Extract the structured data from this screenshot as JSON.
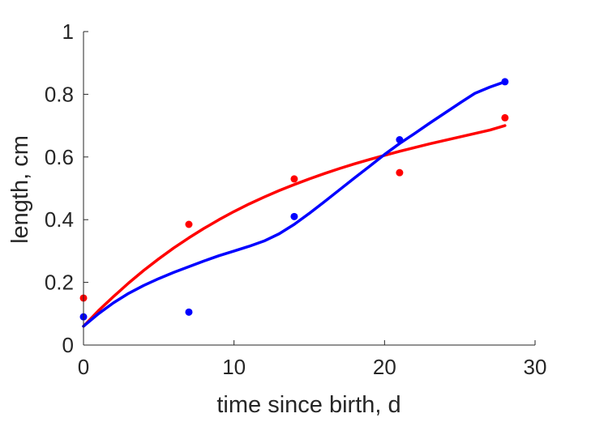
{
  "chart_data": {
    "type": "scatter",
    "title": "",
    "xlabel": "time since birth, d",
    "ylabel": "length, cm",
    "xlim": [
      0,
      30
    ],
    "ylim": [
      0,
      1
    ],
    "xticks": [
      "0",
      "10",
      "20",
      "30"
    ],
    "yticks": [
      "0",
      "0.2",
      "0.4",
      "0.6",
      "0.8",
      "1"
    ],
    "grid": false,
    "legend": "none",
    "series": [
      {
        "kind": "points",
        "color": "#ff0000",
        "x": [
          0,
          7,
          14,
          21,
          28
        ],
        "y": [
          0.15,
          0.385,
          0.53,
          0.55,
          0.725
        ]
      },
      {
        "kind": "points",
        "color": "#0000ff",
        "x": [
          0,
          7,
          14,
          21,
          28
        ],
        "y": [
          0.09,
          0.105,
          0.41,
          0.655,
          0.84
        ]
      },
      {
        "kind": "line",
        "color": "#ff0000",
        "x": [
          0,
          1,
          2,
          3,
          4,
          5,
          6,
          7,
          8,
          9,
          10,
          11,
          12,
          13,
          14,
          15,
          16,
          17,
          18,
          19,
          20,
          21,
          22,
          23,
          24,
          25,
          26,
          27,
          28
        ],
        "y": [
          0.06,
          0.11,
          0.155,
          0.198,
          0.238,
          0.275,
          0.31,
          0.342,
          0.372,
          0.4,
          0.426,
          0.45,
          0.472,
          0.493,
          0.512,
          0.53,
          0.547,
          0.563,
          0.578,
          0.592,
          0.605,
          0.618,
          0.63,
          0.642,
          0.653,
          0.664,
          0.675,
          0.686,
          0.7
        ]
      },
      {
        "kind": "line",
        "color": "#0000ff",
        "x": [
          0,
          1,
          2,
          3,
          4,
          5,
          6,
          7,
          8,
          9,
          10,
          11,
          12,
          13,
          14,
          15,
          16,
          17,
          18,
          19,
          20,
          21,
          22,
          23,
          24,
          25,
          26,
          27,
          28
        ],
        "y": [
          0.06,
          0.1,
          0.135,
          0.165,
          0.19,
          0.212,
          0.232,
          0.25,
          0.268,
          0.285,
          0.3,
          0.315,
          0.332,
          0.355,
          0.385,
          0.42,
          0.457,
          0.495,
          0.533,
          0.57,
          0.608,
          0.643,
          0.675,
          0.708,
          0.74,
          0.772,
          0.803,
          0.823,
          0.84
        ]
      }
    ]
  }
}
